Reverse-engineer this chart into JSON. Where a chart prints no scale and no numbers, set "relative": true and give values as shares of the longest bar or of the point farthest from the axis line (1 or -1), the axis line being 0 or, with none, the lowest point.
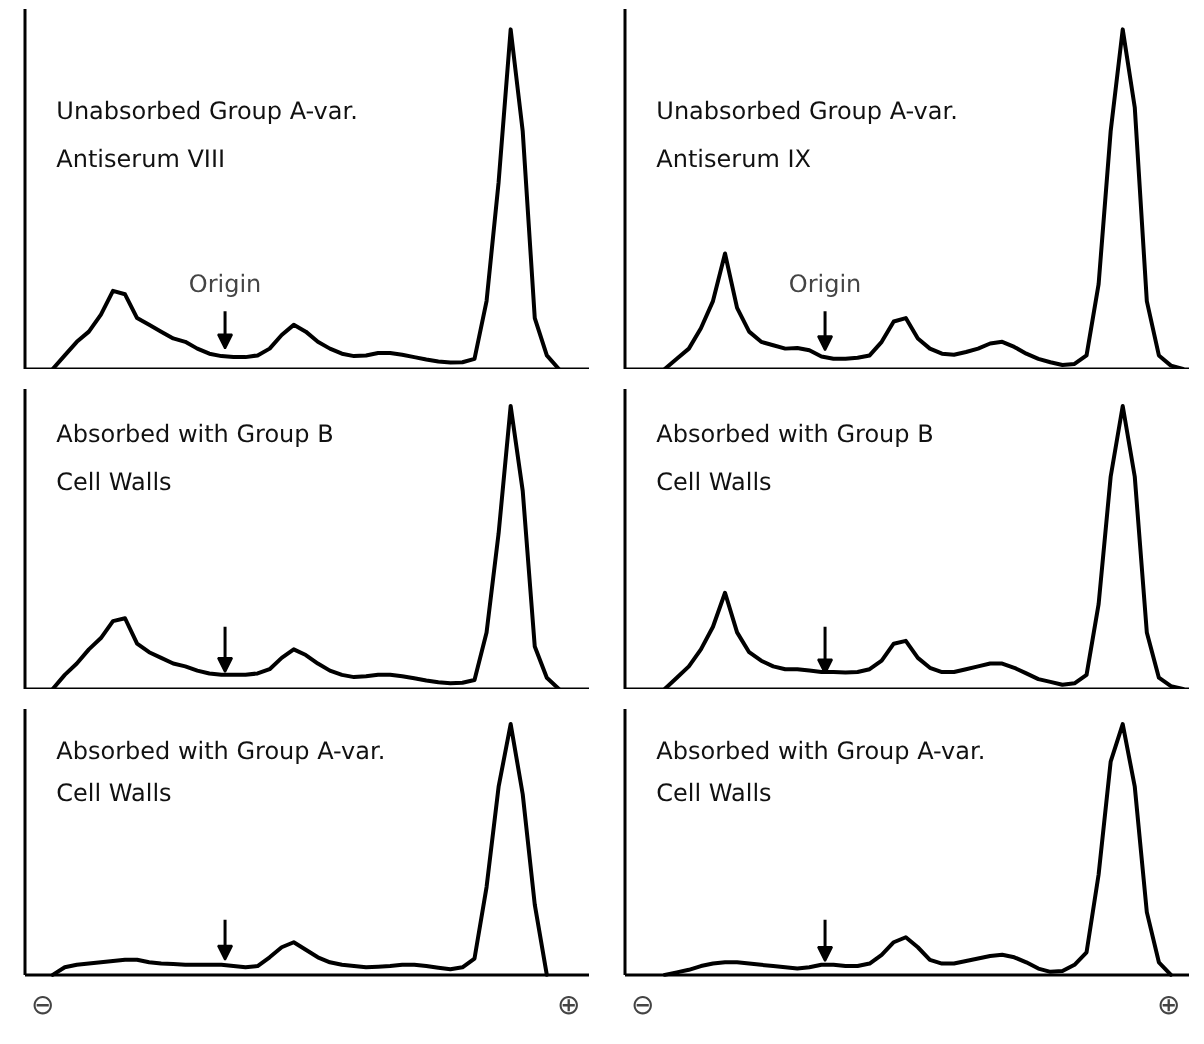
{
  "chart_data": [
    {
      "type": "line",
      "relative": true,
      "color": "#000000",
      "title": "Unabsorbed Group A-var.\nAntiserum VIII",
      "annotations": [
        "Origin"
      ],
      "categories": [
        null,
        null,
        null,
        null,
        null,
        null,
        null,
        null,
        null,
        null,
        null,
        null,
        null,
        null,
        null,
        null,
        null,
        null,
        null,
        null,
        null,
        null,
        null,
        null,
        null,
        null,
        null,
        null,
        null,
        null,
        null,
        null,
        null,
        null,
        null,
        null,
        null,
        null,
        null,
        null,
        null,
        null,
        null,
        null,
        null,
        null,
        null
      ],
      "values": [
        null,
        null,
        0,
        0.04,
        0.08,
        0.11,
        0.16,
        0.23,
        0.22,
        0.15,
        0.13,
        0.11,
        0.09,
        0.08,
        0.06,
        0.045,
        0.038,
        0.035,
        0.035,
        0.04,
        0.06,
        0.1,
        0.13,
        0.11,
        0.08,
        0.06,
        0.045,
        0.038,
        0.04,
        0.047,
        0.047,
        0.042,
        0.035,
        0.028,
        0.022,
        0.019,
        0.02,
        0.03,
        0.2,
        0.55,
        1,
        0.7,
        0.15,
        0.04,
        0,
        null,
        null
      ]
    },
    {
      "type": "line",
      "relative": true,
      "color": "#000000",
      "title": "Unabsorbed Group A-var.\nAntiserum IX",
      "annotations": [
        "Origin"
      ],
      "categories": [
        null,
        null,
        null,
        null,
        null,
        null,
        null,
        null,
        null,
        null,
        null,
        null,
        null,
        null,
        null,
        null,
        null,
        null,
        null,
        null,
        null,
        null,
        null,
        null,
        null,
        null,
        null,
        null,
        null,
        null,
        null,
        null,
        null,
        null,
        null,
        null,
        null,
        null,
        null,
        null,
        null,
        null,
        null,
        null,
        null,
        null,
        null
      ],
      "values": [
        null,
        null,
        null,
        0,
        0.03,
        0.06,
        0.12,
        0.2,
        0.34,
        0.18,
        0.11,
        0.08,
        0.07,
        0.06,
        0.062,
        0.055,
        0.037,
        0.03,
        0.03,
        0.033,
        0.04,
        0.08,
        0.14,
        0.15,
        0.09,
        0.06,
        0.045,
        0.042,
        0.05,
        0.06,
        0.075,
        0.08,
        0.065,
        0.045,
        0.03,
        0.02,
        0.012,
        0.015,
        0.04,
        0.25,
        0.7,
        1,
        0.77,
        0.2,
        0.04,
        0.01,
        0
      ]
    },
    {
      "type": "line",
      "relative": true,
      "color": "#000000",
      "title": "Absorbed with Group B\nCell Walls",
      "categories": [
        null,
        null,
        null,
        null,
        null,
        null,
        null,
        null,
        null,
        null,
        null,
        null,
        null,
        null,
        null,
        null,
        null,
        null,
        null,
        null,
        null,
        null,
        null,
        null,
        null,
        null,
        null,
        null,
        null,
        null,
        null,
        null,
        null,
        null,
        null,
        null,
        null,
        null,
        null,
        null,
        null,
        null,
        null,
        null,
        null,
        null,
        null
      ],
      "values": [
        null,
        null,
        0,
        0.05,
        0.09,
        0.14,
        0.18,
        0.24,
        0.25,
        0.16,
        0.13,
        0.11,
        0.09,
        0.08,
        0.065,
        0.055,
        0.05,
        0.05,
        0.05,
        0.055,
        0.07,
        0.11,
        0.14,
        0.12,
        0.09,
        0.065,
        0.05,
        0.042,
        0.045,
        0.05,
        0.05,
        0.045,
        0.038,
        0.03,
        0.024,
        0.02,
        0.022,
        0.032,
        0.2,
        0.55,
        1,
        0.7,
        0.15,
        0.04,
        0,
        null,
        null
      ]
    },
    {
      "type": "line",
      "relative": true,
      "color": "#000000",
      "title": "Absorbed with Group B\nCell Walls",
      "categories": [
        null,
        null,
        null,
        null,
        null,
        null,
        null,
        null,
        null,
        null,
        null,
        null,
        null,
        null,
        null,
        null,
        null,
        null,
        null,
        null,
        null,
        null,
        null,
        null,
        null,
        null,
        null,
        null,
        null,
        null,
        null,
        null,
        null,
        null,
        null,
        null,
        null,
        null,
        null,
        null,
        null,
        null,
        null,
        null,
        null,
        null,
        null
      ],
      "values": [
        null,
        null,
        null,
        0,
        0.04,
        0.08,
        0.14,
        0.22,
        0.34,
        0.2,
        0.13,
        0.1,
        0.08,
        0.07,
        0.07,
        0.065,
        0.06,
        0.06,
        0.058,
        0.06,
        0.07,
        0.1,
        0.16,
        0.17,
        0.11,
        0.075,
        0.06,
        0.06,
        0.07,
        0.08,
        0.09,
        0.09,
        0.075,
        0.055,
        0.035,
        0.025,
        0.015,
        0.02,
        0.05,
        0.3,
        0.75,
        1,
        0.75,
        0.2,
        0.04,
        0.01,
        0
      ]
    },
    {
      "type": "line",
      "relative": true,
      "color": "#000000",
      "title": "Absorbed with Group A-var.\nCell Walls",
      "annotations": [
        "⊖",
        "⊕"
      ],
      "categories": [
        null,
        null,
        null,
        null,
        null,
        null,
        null,
        null,
        null,
        null,
        null,
        null,
        null,
        null,
        null,
        null,
        null,
        null,
        null,
        null,
        null,
        null,
        null,
        null,
        null,
        null,
        null,
        null,
        null,
        null,
        null,
        null,
        null,
        null,
        null,
        null,
        null,
        null,
        null,
        null,
        null,
        null,
        null,
        null,
        null,
        null,
        null
      ],
      "values": [
        null,
        null,
        0,
        0.03,
        0.04,
        0.045,
        0.05,
        0.055,
        0.06,
        0.06,
        0.05,
        0.045,
        0.043,
        0.04,
        0.04,
        0.04,
        0.04,
        0.035,
        0.03,
        0.035,
        0.07,
        0.11,
        0.13,
        0.1,
        0.07,
        0.05,
        0.04,
        0.035,
        0.03,
        0.032,
        0.035,
        0.04,
        0.04,
        0.035,
        0.028,
        0.022,
        0.03,
        0.065,
        0.35,
        0.75,
        1,
        0.72,
        0.28,
        0,
        null,
        null,
        null
      ]
    },
    {
      "type": "line",
      "relative": true,
      "color": "#000000",
      "title": "Absorbed with Group A-var.\nCell Walls",
      "annotations": [
        "⊖",
        "⊕"
      ],
      "categories": [
        null,
        null,
        null,
        null,
        null,
        null,
        null,
        null,
        null,
        null,
        null,
        null,
        null,
        null,
        null,
        null,
        null,
        null,
        null,
        null,
        null,
        null,
        null,
        null,
        null,
        null,
        null,
        null,
        null,
        null,
        null,
        null,
        null,
        null,
        null,
        null,
        null,
        null,
        null,
        null,
        null,
        null,
        null,
        null,
        null,
        null,
        null
      ],
      "values": [
        null,
        null,
        null,
        0,
        0.01,
        0.02,
        0.035,
        0.045,
        0.05,
        0.05,
        0.045,
        0.04,
        0.035,
        0.03,
        0.025,
        0.03,
        0.04,
        0.04,
        0.035,
        0.035,
        0.045,
        0.08,
        0.13,
        0.15,
        0.11,
        0.06,
        0.045,
        0.045,
        0.055,
        0.065,
        0.075,
        0.08,
        0.07,
        0.05,
        0.025,
        0.012,
        0.015,
        0.04,
        0.09,
        0.4,
        0.85,
        1,
        0.75,
        0.25,
        0.05,
        0,
        null
      ]
    }
  ]
}
